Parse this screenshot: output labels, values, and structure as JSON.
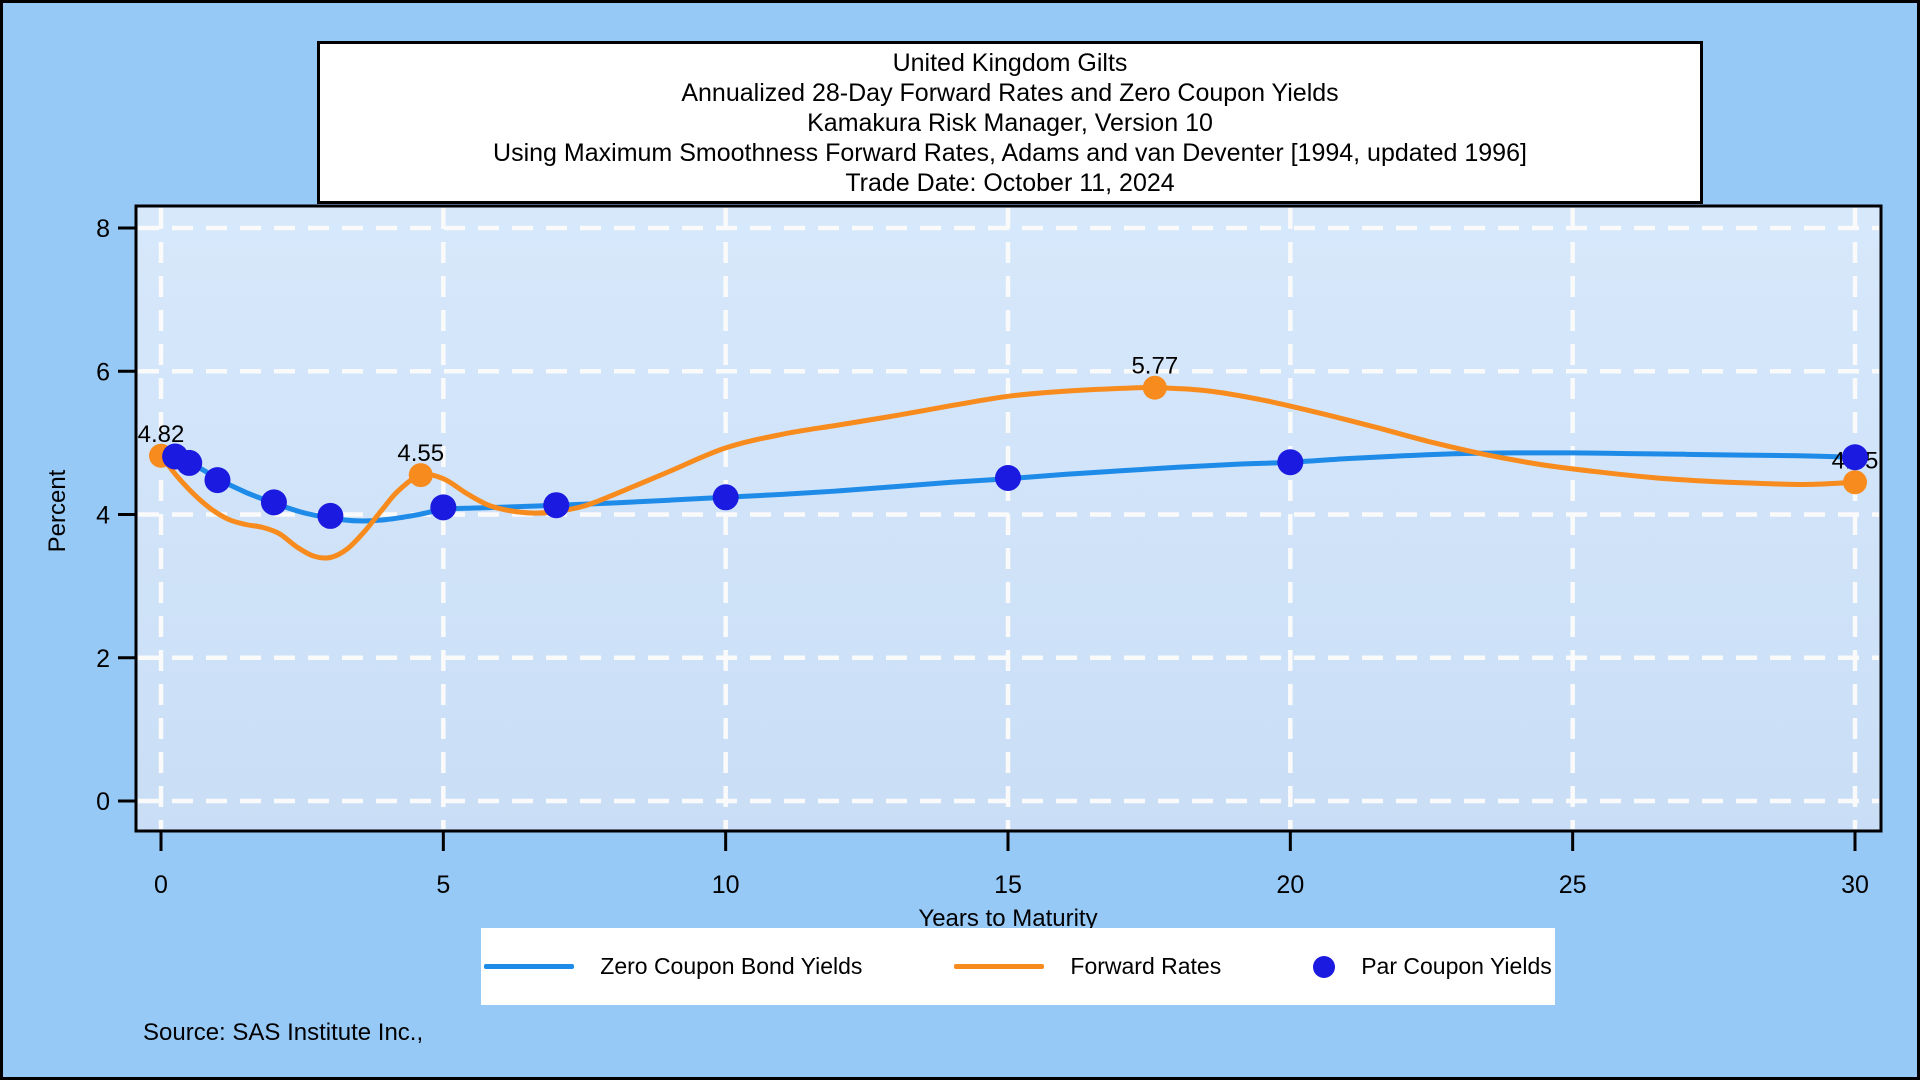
{
  "title": {
    "lines": [
      "United Kingdom Gilts",
      "Annualized 28-Day Forward Rates and Zero Coupon Yields",
      "Kamakura Risk Manager, Version 10",
      "Using Maximum Smoothness Forward Rates, Adams and van Deventer [1994, updated 1996]",
      "Trade Date: October 11, 2024"
    ]
  },
  "source": "Source: SAS Institute Inc.,",
  "colors": {
    "page_background": "#97c9f7",
    "wall_top": "#d7e8fb",
    "wall_bottom": "#c9def6",
    "grid": "#fafafa",
    "axis": "#000000",
    "zero_coupon_line": "#1f8be8",
    "forward_line": "#f78b1e",
    "par_dot": "#1a1ae0",
    "legend_background": "#ffffff",
    "title_background": "#ffffff"
  },
  "legend": {
    "items": [
      {
        "label": "Zero Coupon Bond Yields",
        "swatch": "line",
        "color": "#1f8be8"
      },
      {
        "label": "Forward Rates",
        "swatch": "line",
        "color": "#f78b1e"
      },
      {
        "label": "Par Coupon Yields",
        "swatch": "dot",
        "color": "#1a1ae0"
      }
    ]
  },
  "chart_data": {
    "type": "line",
    "title": "United Kingdom Gilts - Annualized 28-Day Forward Rates and Zero Coupon Yields",
    "xlabel": "Years to Maturity",
    "ylabel": "Percent",
    "xlim": [
      0,
      30
    ],
    "ylim": [
      0,
      8
    ],
    "xticks": [
      0,
      5,
      10,
      15,
      20,
      25,
      30
    ],
    "yticks": [
      0,
      2,
      4,
      6,
      8
    ],
    "grid": "white-dashed",
    "legend_position": "bottom",
    "series": [
      {
        "name": "Zero Coupon Bond Yields",
        "type": "line",
        "color": "#1f8be8",
        "points": [
          [
            0,
            4.82
          ],
          [
            0.25,
            4.8
          ],
          [
            0.5,
            4.73
          ],
          [
            0.75,
            4.62
          ],
          [
            1,
            4.5
          ],
          [
            1.5,
            4.31
          ],
          [
            2,
            4.16
          ],
          [
            2.5,
            4.03
          ],
          [
            3,
            3.95
          ],
          [
            3.5,
            3.91
          ],
          [
            4,
            3.93
          ],
          [
            4.5,
            3.99
          ],
          [
            5,
            4.07
          ],
          [
            5.5,
            4.09
          ],
          [
            6,
            4.1
          ],
          [
            7,
            4.13
          ],
          [
            8,
            4.16
          ],
          [
            9,
            4.2
          ],
          [
            10,
            4.24
          ],
          [
            11,
            4.28
          ],
          [
            12,
            4.33
          ],
          [
            13,
            4.39
          ],
          [
            14,
            4.45
          ],
          [
            15,
            4.5
          ],
          [
            16,
            4.56
          ],
          [
            17,
            4.61
          ],
          [
            18,
            4.66
          ],
          [
            19,
            4.7
          ],
          [
            20,
            4.73
          ],
          [
            21,
            4.78
          ],
          [
            22,
            4.82
          ],
          [
            23,
            4.85
          ],
          [
            24,
            4.86
          ],
          [
            25,
            4.86
          ],
          [
            26,
            4.85
          ],
          [
            27,
            4.84
          ],
          [
            28,
            4.83
          ],
          [
            29,
            4.82
          ],
          [
            30,
            4.8
          ]
        ]
      },
      {
        "name": "Forward Rates",
        "type": "line",
        "color": "#f78b1e",
        "points": [
          [
            0,
            4.82
          ],
          [
            0.3,
            4.52
          ],
          [
            0.6,
            4.27
          ],
          [
            0.9,
            4.07
          ],
          [
            1.2,
            3.93
          ],
          [
            1.5,
            3.86
          ],
          [
            1.8,
            3.82
          ],
          [
            2.1,
            3.73
          ],
          [
            2.4,
            3.55
          ],
          [
            2.7,
            3.42
          ],
          [
            3.0,
            3.4
          ],
          [
            3.3,
            3.52
          ],
          [
            3.6,
            3.76
          ],
          [
            3.9,
            4.05
          ],
          [
            4.2,
            4.33
          ],
          [
            4.6,
            4.55
          ],
          [
            5.0,
            4.5
          ],
          [
            5.4,
            4.3
          ],
          [
            5.8,
            4.13
          ],
          [
            6.2,
            4.05
          ],
          [
            6.6,
            4.02
          ],
          [
            7.0,
            4.04
          ],
          [
            7.5,
            4.12
          ],
          [
            8,
            4.27
          ],
          [
            9,
            4.6
          ],
          [
            10,
            4.93
          ],
          [
            11,
            5.12
          ],
          [
            12,
            5.25
          ],
          [
            13,
            5.38
          ],
          [
            14,
            5.52
          ],
          [
            15,
            5.65
          ],
          [
            16,
            5.72
          ],
          [
            17,
            5.76
          ],
          [
            17.6,
            5.77
          ],
          [
            18.5,
            5.73
          ],
          [
            19.5,
            5.6
          ],
          [
            20.5,
            5.42
          ],
          [
            21.5,
            5.22
          ],
          [
            22.5,
            5.01
          ],
          [
            23.5,
            4.83
          ],
          [
            24.5,
            4.69
          ],
          [
            25.5,
            4.59
          ],
          [
            26.5,
            4.51
          ],
          [
            27.5,
            4.46
          ],
          [
            28.5,
            4.43
          ],
          [
            29.2,
            4.42
          ],
          [
            30,
            4.45
          ]
        ],
        "markers": [
          [
            0,
            4.82
          ],
          [
            4.6,
            4.55
          ],
          [
            17.6,
            5.77
          ],
          [
            30,
            4.45
          ]
        ]
      },
      {
        "name": "Par Coupon Yields",
        "type": "scatter",
        "color": "#1a1ae0",
        "points": [
          [
            0.25,
            4.81
          ],
          [
            0.5,
            4.72
          ],
          [
            1,
            4.48
          ],
          [
            2,
            4.17
          ],
          [
            3,
            3.98
          ],
          [
            5,
            4.1
          ],
          [
            7,
            4.13
          ],
          [
            10,
            4.24
          ],
          [
            15,
            4.51
          ],
          [
            20,
            4.73
          ],
          [
            30,
            4.8
          ]
        ]
      }
    ],
    "point_labels": [
      {
        "x": 0,
        "y": 4.82,
        "text": "4.82"
      },
      {
        "x": 4.6,
        "y": 4.55,
        "text": "4.55"
      },
      {
        "x": 17.6,
        "y": 5.77,
        "text": "5.77"
      },
      {
        "x": 30,
        "y": 4.45,
        "text": "4.45"
      }
    ]
  }
}
